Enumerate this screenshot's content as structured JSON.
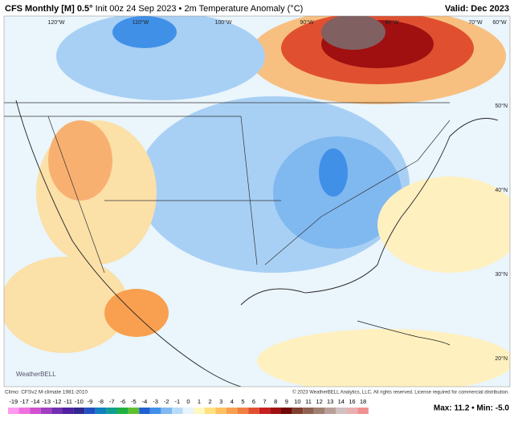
{
  "header": {
    "title_bold": "CFS Monthly [M] 0.5°",
    "title_rest": "Init 00z 24 Sep 2023 • 2m Temperature Anomaly (°C)",
    "valid": "Valid: Dec 2023"
  },
  "map": {
    "lon_labels": [
      "120°W",
      "110°W",
      "100°W",
      "90°W",
      "80°W",
      "70°W",
      "60°W"
    ],
    "lat_labels": [
      "50°N",
      "40°N",
      "30°N",
      "20°N"
    ],
    "logo": "WeatherBELL"
  },
  "footer": {
    "climo": "Climo: CFSv2 M-climate 1981-2010",
    "copyright": "© 2023 WeatherBELL Analytics, LLC. All rights reserved. License required for commercial distribution.",
    "stats": "Max: 11.2 • Min: -5.0"
  },
  "colorbar": {
    "labels": [
      -19,
      -17,
      -14,
      -13,
      -12,
      -11,
      -10,
      -9,
      -8,
      -7,
      -6,
      -5,
      -4,
      -3,
      -2,
      -1,
      0,
      1,
      2,
      3,
      4,
      5,
      6,
      7,
      8,
      9,
      10,
      11,
      12,
      13,
      14,
      16,
      18
    ],
    "colors": [
      "#ff99ee",
      "#f070e0",
      "#d050d0",
      "#a040c0",
      "#7030b0",
      "#5020a0",
      "#302890",
      "#2050c0",
      "#1080c0",
      "#10a090",
      "#20b040",
      "#60c030",
      "#2060d0",
      "#4090e8",
      "#80b8f0",
      "#b8dcf8",
      "#e8f4fc",
      "#fff8c0",
      "#ffe080",
      "#ffc060",
      "#f8a050",
      "#f08040",
      "#e05030",
      "#c82020",
      "#a01010",
      "#700808",
      "#804030",
      "#906050",
      "#a08070",
      "#b8a098",
      "#d0c0c0",
      "#e8b0b0",
      "#f09090"
    ]
  }
}
